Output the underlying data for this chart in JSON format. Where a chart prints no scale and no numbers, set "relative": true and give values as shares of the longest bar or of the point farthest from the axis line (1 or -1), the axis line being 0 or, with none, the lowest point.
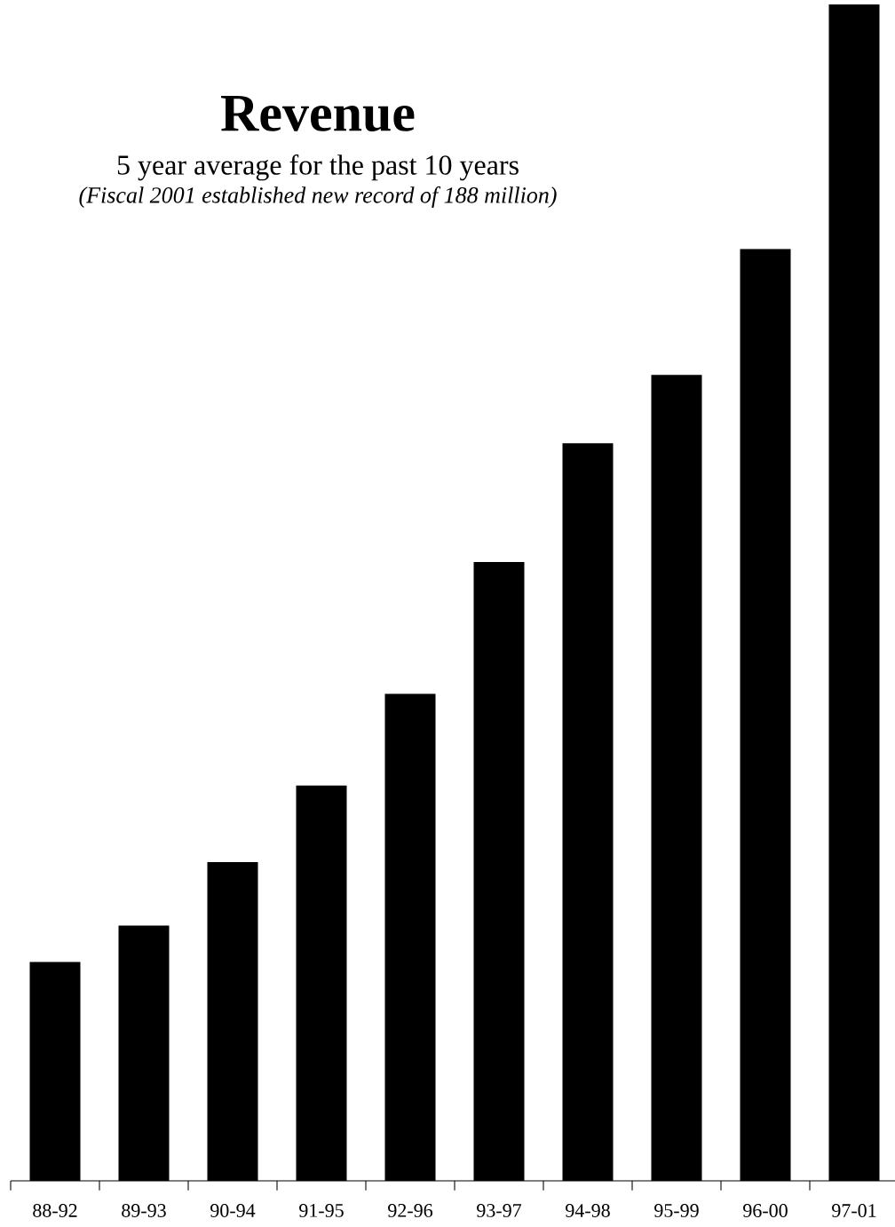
{
  "chart_data": {
    "type": "bar",
    "title": "Revenue",
    "subtitle": "5 year average for the past 10 years",
    "annotations": [
      "(Fiscal 2001 established new record of 188 million)"
    ],
    "categories": [
      "88-92",
      "89-93",
      "90-94",
      "91-95",
      "92-96",
      "93-97",
      "94-98",
      "95-99",
      "96-00",
      "97-01"
    ],
    "values": [
      0.186,
      0.217,
      0.271,
      0.336,
      0.414,
      0.526,
      0.627,
      0.685,
      0.792,
      1.0
    ],
    "color": "#000000",
    "relative": true
  }
}
